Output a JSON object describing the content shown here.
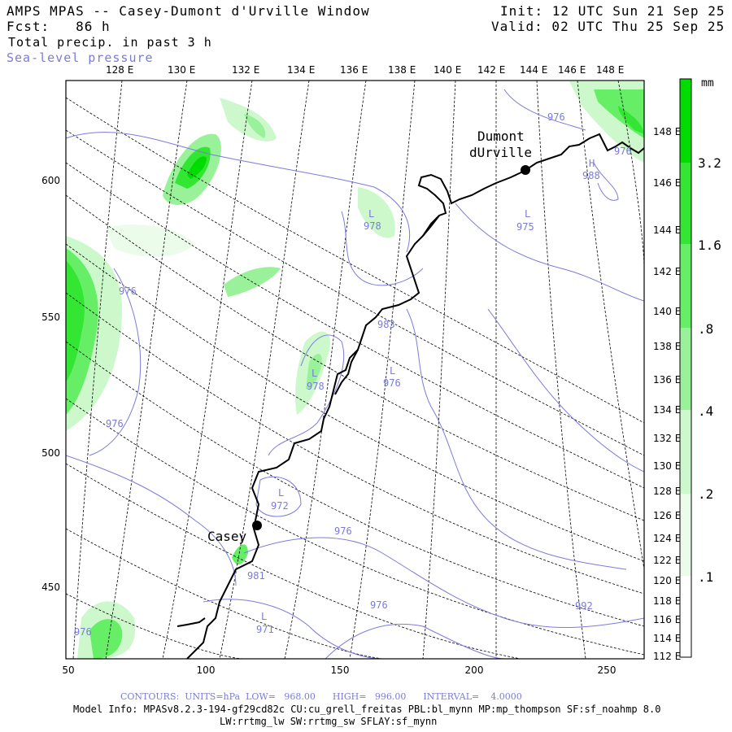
{
  "header": {
    "title": "AMPS MPAS -- Casey-Dumont d'Urville Window",
    "fcst": "Fcst:   86 h",
    "init": "Init: 12 UTC Sun 21 Sep 25",
    "valid": "Valid: 02 UTC Thu 25 Sep 25",
    "field1": "Total precip. in past 3 h",
    "field2": "Sea-level pressure"
  },
  "top_lon_labels": [
    "128 E",
    "130 E",
    "132 E",
    "134 E",
    "136 E",
    "138 E",
    "140 E",
    "142 E",
    "144 E",
    "146 E",
    "148 E"
  ],
  "right_lon_labels": [
    "148 E",
    "146 E",
    "144 E",
    "142 E",
    "140 E",
    "138 E",
    "136 E",
    "134 E",
    "132 E",
    "130 E",
    "128 E",
    "126 E",
    "124 E",
    "122 E",
    "120 E",
    "118 E",
    "116 E",
    "114 E",
    "112 E"
  ],
  "x_axis": {
    "ticks": [
      "50",
      "100",
      "150",
      "200",
      "250"
    ]
  },
  "y_axis": {
    "ticks": [
      "600",
      "550",
      "500",
      "450"
    ]
  },
  "colorbar": {
    "unit": "mm",
    "labels": [
      "3.2",
      "1.6",
      ".8",
      ".4",
      ".2",
      ".1"
    ],
    "colors": [
      "#00dc00",
      "#33e633",
      "#66ee66",
      "#99f299",
      "#ccf8cc",
      "#ebfceb"
    ]
  },
  "places": [
    {
      "name": "Dumont"
    },
    {
      "name": "dUrville"
    },
    {
      "name": "Casey"
    }
  ],
  "pressure_labels": [
    "978",
    "976",
    "983",
    "978",
    "976",
    "972",
    "976",
    "981",
    "971",
    "976",
    "975",
    "976",
    "988",
    "976",
    "992",
    "976",
    "976"
  ],
  "pressure_hl": [
    "L",
    "L",
    "L",
    "L",
    "L",
    "L",
    "H"
  ],
  "footer": {
    "contours": "CONTOURS:  UNITS=hPa  LOW=   968.00      HIGH=   996.00      INTERVAL=    4.0000",
    "model1": "Model Info: MPASv8.2.3-194-gf29cd82c CU:cu_grell_freitas PBL:bl_mynn MP:mp_thompson SF:sf_noahmp 8.0",
    "model2": "LW:rrtmg_lw SW:rrtmg_sw SFLAY:sf_mynn"
  }
}
